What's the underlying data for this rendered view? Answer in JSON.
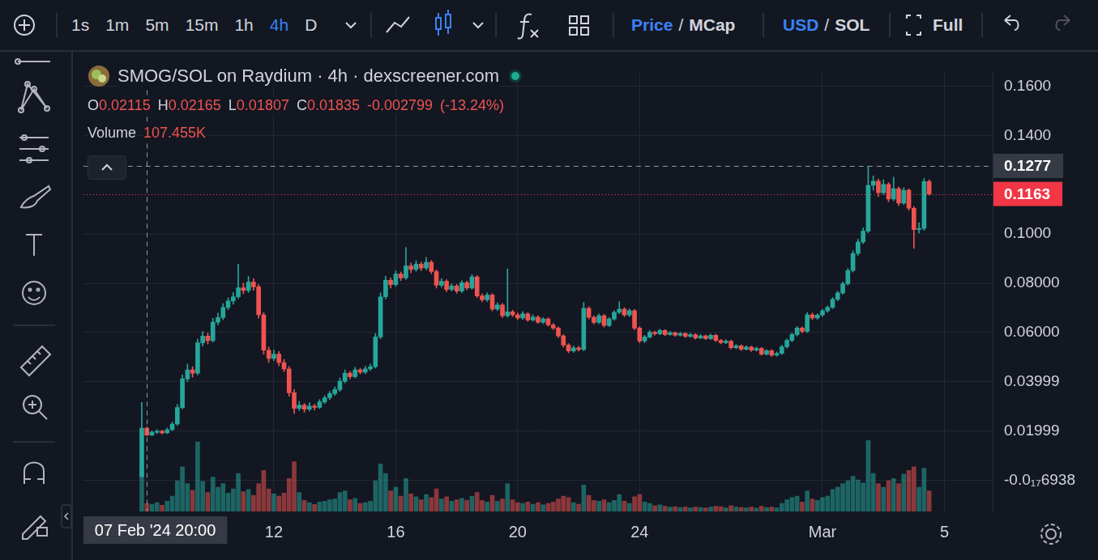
{
  "toolbar": {
    "intervals": [
      "1s",
      "1m",
      "5m",
      "15m",
      "1h",
      "4h",
      "D"
    ],
    "active_interval": "4h",
    "price_mcap": [
      "Price",
      "MCap"
    ],
    "active_price_mcap": "Price",
    "currency": [
      "USD",
      "SOL"
    ],
    "active_currency": "USD",
    "separator": "/",
    "full": "Full"
  },
  "chart_data": {
    "type": "candlestick",
    "title": "SMOG/SOL on Raydium · 4h · dexscreener.com",
    "categories": [
      null,
      null,
      null,
      null,
      null,
      null,
      null,
      null,
      null,
      null,
      null,
      null,
      null,
      null,
      null,
      null,
      null,
      null,
      null,
      null,
      null,
      null,
      null,
      null,
      null,
      null,
      null,
      null,
      null,
      null,
      null,
      null,
      null,
      null,
      null,
      null,
      null,
      "12",
      null,
      null,
      null,
      null,
      null,
      null,
      null,
      null,
      null,
      null,
      null,
      null,
      null,
      null,
      null,
      null,
      null,
      null,
      null,
      null,
      null,
      null,
      null,
      "16",
      null,
      null,
      null,
      null,
      null,
      null,
      null,
      null,
      null,
      null,
      null,
      null,
      null,
      null,
      null,
      null,
      null,
      null,
      null,
      null,
      null,
      null,
      null,
      "20",
      null,
      null,
      null,
      null,
      null,
      null,
      null,
      null,
      null,
      null,
      null,
      null,
      null,
      null,
      null,
      null,
      null,
      null,
      null,
      null,
      null,
      null,
      null,
      "24",
      null,
      null,
      null,
      null,
      null,
      null,
      null,
      null,
      null,
      null,
      null,
      null,
      null,
      null,
      null,
      null,
      null,
      null,
      null,
      null,
      null,
      null,
      null,
      null,
      null,
      null,
      null,
      null,
      null,
      null,
      null,
      null,
      null,
      null,
      null,
      "Mar",
      null,
      null,
      null,
      null,
      null,
      null,
      null,
      null,
      null,
      null,
      null,
      null,
      null,
      null,
      null,
      null,
      null,
      null,
      null,
      null,
      null,
      null,
      null,
      "5",
      null,
      null,
      null,
      null,
      null,
      null,
      null,
      null,
      null
    ],
    "open": [
      null,
      null,
      null,
      null,
      null,
      null,
      null,
      null,
      null,
      null,
      null,
      0.0015,
      0.02115,
      0.01835,
      0.0195,
      0.0199,
      0.0192,
      0.0205,
      0.0228,
      0.0295,
      0.0412,
      0.0448,
      0.0435,
      0.0558,
      0.0585,
      0.0567,
      0.0642,
      0.0661,
      0.0702,
      0.0728,
      0.0745,
      0.0782,
      0.0771,
      0.0805,
      0.0786,
      0.0672,
      0.0528,
      0.0495,
      0.0512,
      0.0478,
      0.0452,
      0.0355,
      0.0292,
      0.0305,
      0.0288,
      0.0301,
      0.0296,
      0.0318,
      0.0335,
      0.0352,
      0.0368,
      0.0402,
      0.0435,
      0.0421,
      0.0448,
      0.0439,
      0.0452,
      0.0461,
      0.0582,
      0.0745,
      0.0812,
      0.0795,
      0.0838,
      0.0822,
      0.0871,
      0.0856,
      0.0878,
      0.0862,
      0.0885,
      0.0848,
      0.0792,
      0.0808,
      0.0775,
      0.0789,
      0.0768,
      0.0802,
      0.0781,
      0.0826,
      0.0749,
      0.0733,
      0.0752,
      0.0695,
      0.0712,
      0.0668,
      0.0684,
      0.0672,
      0.0659,
      0.0676,
      0.0651,
      0.0663,
      0.0642,
      0.0655,
      0.0631,
      0.0618,
      0.0586,
      0.0549,
      0.0525,
      0.0538,
      0.0531,
      0.0698,
      0.0662,
      0.0641,
      0.0668,
      0.0629,
      0.0655,
      0.0682,
      0.0695,
      0.0671,
      0.0689,
      0.0618,
      0.0565,
      0.0582,
      0.0601,
      0.0595,
      0.0608,
      0.0592,
      0.0599,
      0.0589,
      0.0596,
      0.0584,
      0.0591,
      0.0578,
      0.0586,
      0.0575,
      0.0589,
      0.0568,
      0.0559,
      0.0565,
      0.0538,
      0.0546,
      0.0532,
      0.0541,
      0.0528,
      0.0535,
      0.0512,
      0.0526,
      0.0508,
      0.0515,
      0.0542,
      0.0568,
      0.0592,
      0.0618,
      0.0605,
      0.0672,
      0.0659,
      0.0671,
      0.0688,
      0.0702,
      0.0735,
      0.0761,
      0.0798,
      0.0852,
      0.0921,
      0.0968,
      0.1012,
      0.1198,
      0.1215,
      0.1168,
      0.1202,
      0.1142,
      0.1185,
      0.1126,
      0.1178,
      0.1105,
      0.1018,
      0.1023,
      0.1213,
      null,
      null,
      null,
      null,
      null,
      null,
      null,
      null,
      null,
      null,
      null,
      null
    ],
    "high": [
      null,
      null,
      null,
      null,
      null,
      null,
      null,
      null,
      null,
      null,
      null,
      0.0316,
      0.02165,
      0.0201,
      0.0206,
      0.0203,
      0.0212,
      0.0236,
      0.0308,
      0.0428,
      0.0472,
      0.0461,
      0.0573,
      0.0604,
      0.0598,
      0.0658,
      0.0679,
      0.0718,
      0.0741,
      0.0762,
      0.0878,
      0.0801,
      0.0828,
      0.0819,
      0.0795,
      0.0681,
      0.0541,
      0.0529,
      0.0523,
      0.0491,
      0.0462,
      0.0368,
      0.0321,
      0.0312,
      0.0315,
      0.0309,
      0.0327,
      0.0344,
      0.0361,
      0.0379,
      0.0415,
      0.0448,
      0.0442,
      0.0459,
      0.0455,
      0.0463,
      0.0472,
      0.0596,
      0.0761,
      0.0829,
      0.0822,
      0.0851,
      0.0846,
      0.0945,
      0.0883,
      0.0892,
      0.0886,
      0.0905,
      0.0893,
      0.0855,
      0.0819,
      0.0815,
      0.0798,
      0.0796,
      0.0811,
      0.0809,
      0.0835,
      0.0831,
      0.0757,
      0.0761,
      0.0758,
      0.0721,
      0.0718,
      0.0858,
      0.0691,
      0.0679,
      0.0685,
      0.0681,
      0.0672,
      0.0668,
      0.0661,
      0.0659,
      0.0637,
      0.0623,
      0.0592,
      0.0555,
      0.0545,
      0.0544,
      0.0722,
      0.0705,
      0.0668,
      0.0676,
      0.0673,
      0.0661,
      0.0689,
      0.0725,
      0.0701,
      0.0696,
      0.0694,
      0.0624,
      0.0589,
      0.0608,
      0.0606,
      0.0613,
      0.0612,
      0.0604,
      0.0603,
      0.0601,
      0.0599,
      0.0597,
      0.0595,
      0.0592,
      0.059,
      0.0594,
      0.0593,
      0.0572,
      0.0571,
      0.0569,
      0.0552,
      0.055,
      0.0547,
      0.0545,
      0.0541,
      0.0539,
      0.0531,
      0.053,
      0.0521,
      0.0548,
      0.0574,
      0.0598,
      0.0625,
      0.0623,
      0.0681,
      0.0679,
      0.0677,
      0.0695,
      0.0709,
      0.0742,
      0.0768,
      0.0806,
      0.0861,
      0.0932,
      0.0979,
      0.1025,
      0.1277,
      0.1236,
      0.1224,
      0.1221,
      0.1209,
      0.1231,
      0.1192,
      0.1189,
      0.1184,
      0.1112,
      0.1046,
      0.1226,
      0.1221,
      null,
      null,
      null,
      null,
      null,
      null,
      null,
      null,
      null,
      null,
      null,
      null
    ],
    "low": [
      null,
      null,
      null,
      null,
      null,
      null,
      null,
      null,
      null,
      null,
      null,
      0.0012,
      0.01807,
      0.0181,
      0.0189,
      0.0187,
      0.0189,
      0.0201,
      0.0222,
      0.0289,
      0.0401,
      0.0418,
      0.0428,
      0.0545,
      0.0553,
      0.0561,
      0.0631,
      0.0652,
      0.0693,
      0.0715,
      0.0738,
      0.0758,
      0.0763,
      0.0772,
      0.0658,
      0.0512,
      0.0478,
      0.0486,
      0.0465,
      0.0441,
      0.0341,
      0.0271,
      0.0283,
      0.0276,
      0.0281,
      0.0285,
      0.0291,
      0.0311,
      0.0327,
      0.0344,
      0.0361,
      0.0395,
      0.0412,
      0.0415,
      0.0431,
      0.0432,
      0.0445,
      0.0455,
      0.0574,
      0.0736,
      0.0781,
      0.0788,
      0.0811,
      0.0815,
      0.0842,
      0.0849,
      0.0851,
      0.0855,
      0.0839,
      0.0781,
      0.0784,
      0.0766,
      0.0768,
      0.0759,
      0.0762,
      0.0773,
      0.0776,
      0.0741,
      0.0725,
      0.0726,
      0.0688,
      0.0689,
      0.0661,
      0.0662,
      0.0665,
      0.0652,
      0.0653,
      0.0645,
      0.0646,
      0.0637,
      0.0636,
      0.0625,
      0.0611,
      0.0579,
      0.0541,
      0.0518,
      0.0519,
      0.0524,
      0.0526,
      0.0655,
      0.0634,
      0.0636,
      0.0622,
      0.0624,
      0.0649,
      0.0676,
      0.0664,
      0.0665,
      0.0611,
      0.0558,
      0.0559,
      0.0577,
      0.0589,
      0.0591,
      0.0587,
      0.0588,
      0.0584,
      0.0585,
      0.0579,
      0.058,
      0.0573,
      0.0574,
      0.0571,
      0.0571,
      0.0563,
      0.0554,
      0.0555,
      0.0533,
      0.0534,
      0.0527,
      0.0528,
      0.0523,
      0.0524,
      0.0507,
      0.0508,
      0.0503,
      0.0504,
      0.0511,
      0.0537,
      0.0562,
      0.0586,
      0.0598,
      0.06,
      0.0652,
      0.0653,
      0.0665,
      0.0682,
      0.0697,
      0.0729,
      0.0755,
      0.0792,
      0.0846,
      0.0914,
      0.0961,
      0.1005,
      0.1178,
      0.1152,
      0.1161,
      0.1131,
      0.1135,
      0.1115,
      0.1119,
      0.1096,
      0.0942,
      0.1004,
      0.1015,
      0.1158,
      null,
      null,
      null,
      null,
      null,
      null,
      null,
      null,
      null,
      null,
      null,
      null
    ],
    "close": [
      null,
      null,
      null,
      null,
      null,
      null,
      null,
      null,
      null,
      null,
      null,
      0.02115,
      0.01835,
      0.0195,
      0.0199,
      0.0192,
      0.0205,
      0.0228,
      0.0295,
      0.0412,
      0.0448,
      0.0435,
      0.0558,
      0.0585,
      0.0567,
      0.0642,
      0.0661,
      0.0702,
      0.0728,
      0.0745,
      0.0782,
      0.0771,
      0.0805,
      0.0786,
      0.0672,
      0.0528,
      0.0495,
      0.0512,
      0.0478,
      0.0452,
      0.0355,
      0.0292,
      0.0305,
      0.0288,
      0.0301,
      0.0296,
      0.0318,
      0.0335,
      0.0352,
      0.0368,
      0.0402,
      0.0435,
      0.0421,
      0.0448,
      0.0439,
      0.0452,
      0.0461,
      0.0582,
      0.0745,
      0.0812,
      0.0795,
      0.0838,
      0.0822,
      0.0871,
      0.0856,
      0.0878,
      0.0862,
      0.0885,
      0.0848,
      0.0792,
      0.0808,
      0.0775,
      0.0789,
      0.0768,
      0.0802,
      0.0781,
      0.0826,
      0.0749,
      0.0733,
      0.0752,
      0.0695,
      0.0712,
      0.0668,
      0.0684,
      0.0672,
      0.0659,
      0.0676,
      0.0651,
      0.0663,
      0.0642,
      0.0655,
      0.0631,
      0.0618,
      0.0586,
      0.0549,
      0.0525,
      0.0538,
      0.0531,
      0.0698,
      0.0662,
      0.0641,
      0.0668,
      0.0629,
      0.0655,
      0.0682,
      0.0695,
      0.0671,
      0.0689,
      0.0618,
      0.0565,
      0.0582,
      0.0601,
      0.0595,
      0.0608,
      0.0592,
      0.0599,
      0.0589,
      0.0596,
      0.0584,
      0.0591,
      0.0578,
      0.0586,
      0.0575,
      0.0589,
      0.0568,
      0.0559,
      0.0565,
      0.0538,
      0.0546,
      0.0532,
      0.0541,
      0.0528,
      0.0535,
      0.0512,
      0.0526,
      0.0508,
      0.0515,
      0.0542,
      0.0568,
      0.0592,
      0.0618,
      0.0605,
      0.0672,
      0.0659,
      0.0671,
      0.0688,
      0.0702,
      0.0735,
      0.0761,
      0.0798,
      0.0852,
      0.0921,
      0.0968,
      0.1012,
      0.1198,
      0.1215,
      0.1168,
      0.1202,
      0.1142,
      0.1185,
      0.1126,
      0.1178,
      0.1105,
      0.1018,
      0.1023,
      0.1213,
      0.1163,
      null,
      null,
      null,
      null,
      null,
      null,
      null,
      null,
      null,
      null,
      null,
      null
    ],
    "volume": [
      null,
      null,
      null,
      null,
      null,
      null,
      null,
      null,
      null,
      null,
      null,
      580000,
      107455,
      98000,
      120000,
      85000,
      140000,
      210000,
      420000,
      610000,
      380000,
      290000,
      950000,
      410000,
      260000,
      470000,
      330000,
      380000,
      250000,
      310000,
      520000,
      270000,
      300000,
      220000,
      380000,
      560000,
      310000,
      240000,
      210000,
      250000,
      450000,
      680000,
      260000,
      150000,
      120000,
      95000,
      130000,
      140000,
      160000,
      170000,
      260000,
      280000,
      160000,
      180000,
      110000,
      120000,
      140000,
      420000,
      650000,
      520000,
      280000,
      330000,
      210000,
      450000,
      240000,
      200000,
      160000,
      230000,
      190000,
      310000,
      170000,
      200000,
      140000,
      160000,
      180000,
      150000,
      210000,
      260000,
      150000,
      130000,
      220000,
      140000,
      170000,
      380000,
      160000,
      120000,
      110000,
      130000,
      100000,
      120000,
      90000,
      110000,
      130000,
      170000,
      210000,
      190000,
      120000,
      100000,
      360000,
      220000,
      150000,
      140000,
      160000,
      120000,
      150000,
      230000,
      140000,
      110000,
      200000,
      230000,
      130000,
      110000,
      80000,
      90000,
      70000,
      60000,
      65000,
      55000,
      60000,
      50000,
      60000,
      55000,
      50000,
      60000,
      70000,
      65000,
      50000,
      80000,
      60000,
      55000,
      50000,
      60000,
      45000,
      70000,
      55000,
      60000,
      50000,
      110000,
      160000,
      190000,
      210000,
      130000,
      280000,
      170000,
      150000,
      190000,
      210000,
      300000,
      330000,
      380000,
      420000,
      480000,
      430000,
      390000,
      970000,
      520000,
      380000,
      330000,
      420000,
      450000,
      380000,
      510000,
      560000,
      610000,
      330000,
      590000,
      280000,
      null,
      null,
      null,
      null,
      null,
      null,
      null,
      null,
      null,
      null,
      null,
      null
    ],
    "ylim": [
      -0.0127,
      0.1657
    ],
    "yticks": [
      {
        "value": 0.16,
        "label": "0.1600"
      },
      {
        "value": 0.14,
        "label": "0.1400"
      },
      {
        "value": 0.1,
        "label": "0.1000"
      },
      {
        "value": 0.08,
        "label": "0.08000"
      },
      {
        "value": 0.06,
        "label": "0.06000"
      },
      0.03999,
      0.01999,
      {
        "value": -6.938e-19,
        "label": "-0.0₁₇6938"
      }
    ],
    "y2lim": [
      0,
      6000000
    ],
    "grid": true,
    "ohlc_legend": {
      "keys": [
        "O",
        "H",
        "L",
        "C"
      ],
      "change": -0.002799,
      "change_pct": {
        "value": -13.24,
        "label": "(-13.24%)"
      },
      "volume_label": "Volume",
      "volume_text": "107.455K"
    },
    "crosshair": {
      "index": 12,
      "x_label": "07 Feb '24 20:00",
      "y": 0.1277,
      "y_label": "0.1277"
    },
    "last_price": {
      "value": 0.1163,
      "label": "0.1163"
    }
  }
}
